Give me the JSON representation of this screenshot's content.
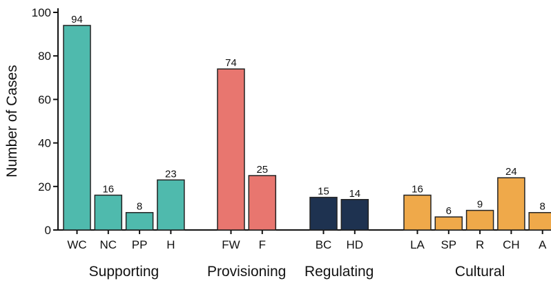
{
  "chart_data": {
    "type": "bar",
    "ylabel": "Number of Cases",
    "xlabel": "",
    "ylim": [
      0,
      100
    ],
    "yticks": [
      0,
      20,
      40,
      60,
      80,
      100
    ],
    "grid": false,
    "groups": [
      {
        "name": "Supporting",
        "color": "#4fbaad",
        "bars": [
          {
            "label": "WC",
            "value": 94
          },
          {
            "label": "NC",
            "value": 16
          },
          {
            "label": "PP",
            "value": 8
          },
          {
            "label": "H",
            "value": 23
          }
        ]
      },
      {
        "name": "Provisioning",
        "color": "#e8766f",
        "bars": [
          {
            "label": "FW",
            "value": 74
          },
          {
            "label": "F",
            "value": 25
          }
        ]
      },
      {
        "name": "Regulating",
        "color": "#1e3250",
        "bars": [
          {
            "label": "BC",
            "value": 15
          },
          {
            "label": "HD",
            "value": 14
          }
        ]
      },
      {
        "name": "Cultural",
        "color": "#efa94a",
        "bars": [
          {
            "label": "LA",
            "value": 16
          },
          {
            "label": "SP",
            "value": 6
          },
          {
            "label": "R",
            "value": 9
          },
          {
            "label": "CH",
            "value": 24
          },
          {
            "label": "A",
            "value": 8
          }
        ]
      }
    ]
  }
}
